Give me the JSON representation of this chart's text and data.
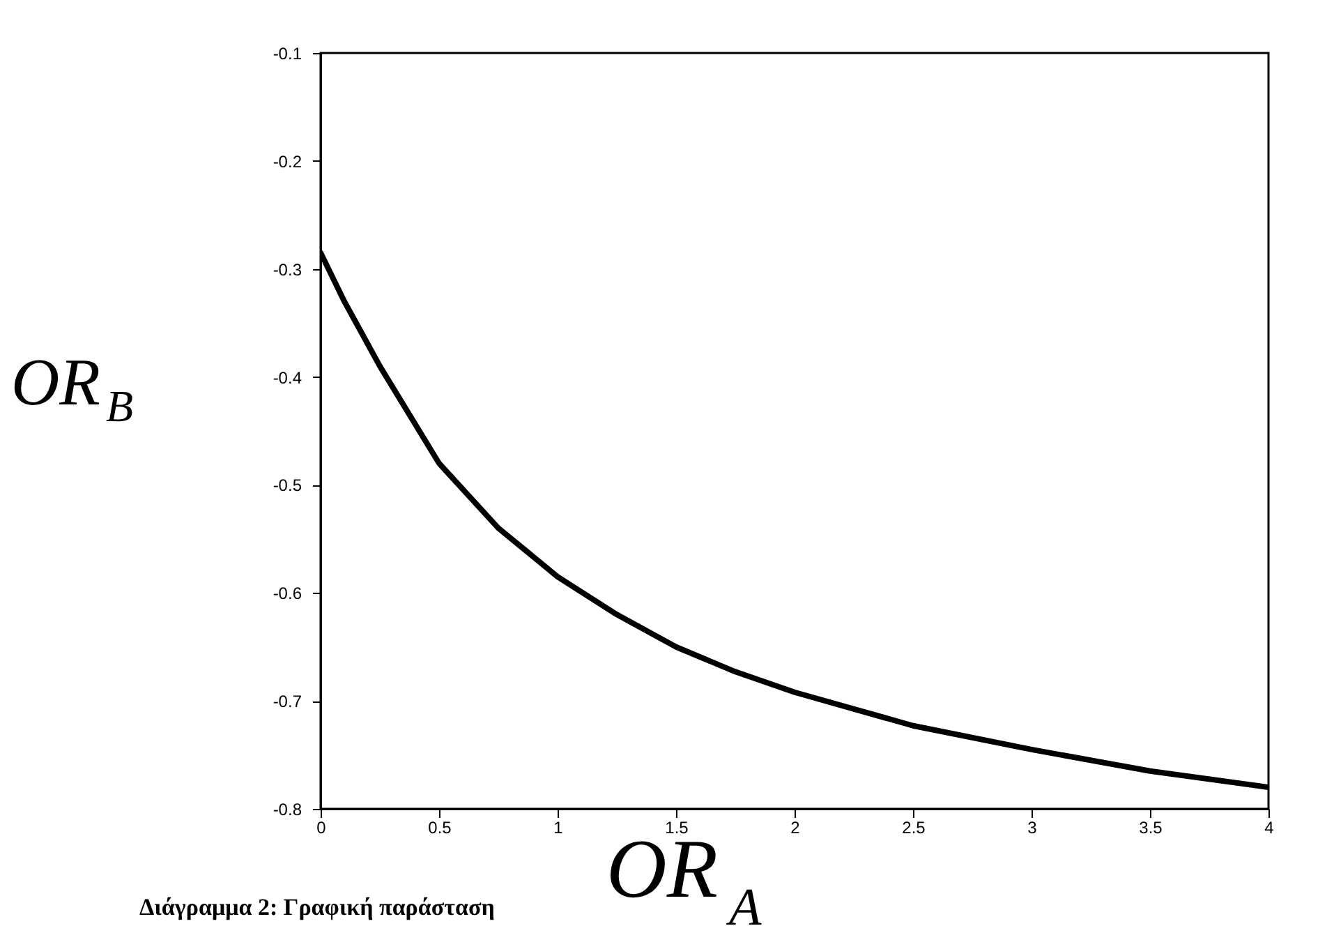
{
  "chart_data": {
    "type": "line",
    "xlabel": "OR$_{A}$",
    "ylabel": "OR$_{B}$",
    "annotations": [
      "Διάγραμμα 2: Γραφική παράσταση"
    ],
    "x": [
      0,
      0.1,
      0.25,
      0.5,
      0.75,
      1,
      1.25,
      1.5,
      1.75,
      2,
      2.5,
      3,
      3.5,
      4
    ],
    "series": [
      {
        "color": "#000000",
        "values": [
          -0.285,
          -0.33,
          -0.39,
          -0.48,
          -0.54,
          -0.585,
          -0.62,
          -0.65,
          -0.673,
          -0.692,
          -0.723,
          -0.745,
          -0.765,
          -0.78
        ]
      }
    ],
    "xlim": [
      0,
      4
    ],
    "xticks": [
      0,
      0.5,
      1,
      1.5,
      2,
      2.5,
      3,
      3.5,
      4
    ],
    "ylim": [
      -0.8,
      -0.1
    ],
    "yticks": [
      -0.8,
      -0.7,
      -0.6,
      -0.5,
      -0.4,
      -0.3,
      -0.2,
      -0.1
    ],
    "grid": false,
    "marker": "none",
    "line_style": "solid"
  }
}
